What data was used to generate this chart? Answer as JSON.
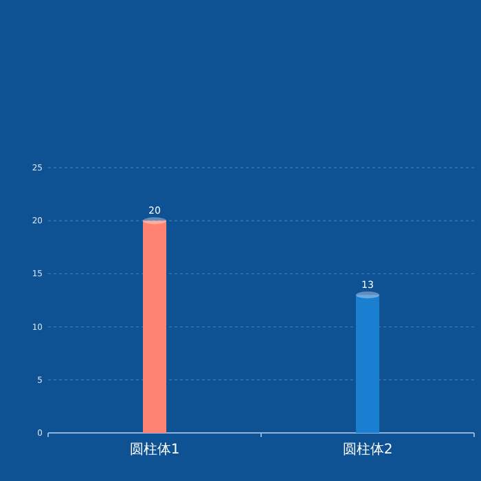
{
  "chart_data": {
    "type": "bar",
    "categories": [
      "圆柱体1",
      "圆柱体2"
    ],
    "values": [
      20,
      13
    ],
    "colors": [
      "#ff8272",
      "#1a7fd0"
    ],
    "ylim": [
      0,
      25
    ],
    "yticks": [
      0,
      5,
      10,
      15,
      20,
      25
    ],
    "grid": "y",
    "data_labels": true
  }
}
